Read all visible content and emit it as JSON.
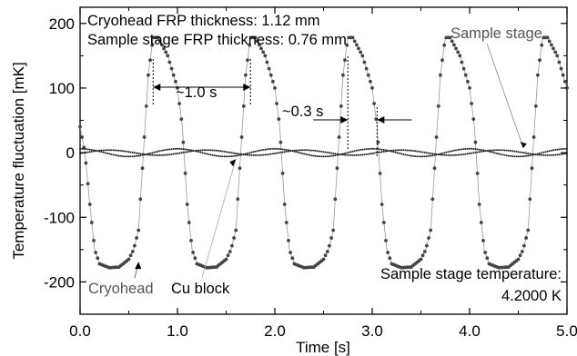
{
  "chart_data": {
    "type": "scatter",
    "xlabel": "Time [s]",
    "ylabel": "Temperature fluctuation [mK]",
    "xlim": [
      0.0,
      5.0
    ],
    "ylim": [
      -250,
      225
    ],
    "x_ticks": [
      "0.0",
      "1.0",
      "2.0",
      "3.0",
      "4.0",
      "5.0"
    ],
    "y_ticks": [
      "200",
      "100",
      "0",
      "-100",
      "-200"
    ],
    "grid": false,
    "series": [
      {
        "name": "Cryohead",
        "marker": "dots connected by thin line",
        "points": [
          [
            0.0,
            40
          ],
          [
            0.05,
            0
          ],
          [
            0.1,
            -80
          ],
          [
            0.15,
            -150
          ],
          [
            0.2,
            -172
          ],
          [
            0.3,
            -178
          ],
          [
            0.4,
            -177
          ],
          [
            0.5,
            -165
          ],
          [
            0.55,
            -150
          ],
          [
            0.6,
            -120
          ],
          [
            0.65,
            0
          ],
          [
            0.7,
            120
          ],
          [
            0.75,
            178
          ],
          [
            0.8,
            178
          ],
          [
            0.9,
            150
          ],
          [
            1.0,
            100
          ],
          [
            1.05,
            40
          ],
          [
            1.1,
            -80
          ],
          [
            1.15,
            -150
          ],
          [
            1.2,
            -172
          ],
          [
            1.3,
            -178
          ],
          [
            1.4,
            -177
          ],
          [
            1.5,
            -165
          ],
          [
            1.55,
            -150
          ],
          [
            1.6,
            -120
          ],
          [
            1.65,
            0
          ],
          [
            1.7,
            120
          ],
          [
            1.75,
            178
          ],
          [
            1.8,
            178
          ],
          [
            1.9,
            150
          ],
          [
            2.0,
            100
          ],
          [
            2.05,
            40
          ],
          [
            2.1,
            -80
          ],
          [
            2.15,
            -150
          ],
          [
            2.2,
            -172
          ],
          [
            2.3,
            -178
          ],
          [
            2.4,
            -177
          ],
          [
            2.5,
            -165
          ],
          [
            2.55,
            -150
          ],
          [
            2.6,
            -120
          ],
          [
            2.65,
            0
          ],
          [
            2.7,
            120
          ],
          [
            2.75,
            178
          ],
          [
            2.8,
            178
          ],
          [
            2.9,
            150
          ],
          [
            3.0,
            100
          ],
          [
            3.05,
            40
          ],
          [
            3.1,
            -80
          ],
          [
            3.15,
            -150
          ],
          [
            3.2,
            -172
          ],
          [
            3.3,
            -178
          ],
          [
            3.4,
            -177
          ],
          [
            3.5,
            -165
          ],
          [
            3.55,
            -150
          ],
          [
            3.6,
            -120
          ],
          [
            3.65,
            0
          ],
          [
            3.7,
            120
          ],
          [
            3.75,
            178
          ],
          [
            3.8,
            178
          ],
          [
            3.9,
            150
          ],
          [
            4.0,
            100
          ],
          [
            4.05,
            40
          ],
          [
            4.1,
            -80
          ],
          [
            4.15,
            -150
          ],
          [
            4.2,
            -172
          ],
          [
            4.3,
            -178
          ],
          [
            4.4,
            -177
          ],
          [
            4.5,
            -165
          ],
          [
            4.55,
            -150
          ],
          [
            4.6,
            -120
          ],
          [
            4.65,
            0
          ],
          [
            4.7,
            120
          ],
          [
            4.75,
            178
          ],
          [
            4.8,
            178
          ],
          [
            4.9,
            150
          ],
          [
            5.0,
            100
          ]
        ]
      },
      {
        "name": "Cu block",
        "marker": "small dots",
        "amplitude": 6,
        "period": 1.0,
        "phase": 0.0
      },
      {
        "name": "Sample stage",
        "marker": "small dots",
        "amplitude": 4,
        "period": 1.0,
        "phase": 0.3
      }
    ],
    "annotations": {
      "header_line1": "Cryohead FRP thickness: 1.12 mm",
      "header_line2": "Sample stage FRP thickness: 0.76 mm",
      "label_sample_stage": "Sample stage",
      "label_cryohead": "Cryohead",
      "label_cu_block": "Cu block",
      "period_label": "~1.0 s",
      "lag_label": "~0.3 s",
      "temp_line1": "Sample stage temperature:",
      "temp_line2": "4.2000 K"
    }
  }
}
